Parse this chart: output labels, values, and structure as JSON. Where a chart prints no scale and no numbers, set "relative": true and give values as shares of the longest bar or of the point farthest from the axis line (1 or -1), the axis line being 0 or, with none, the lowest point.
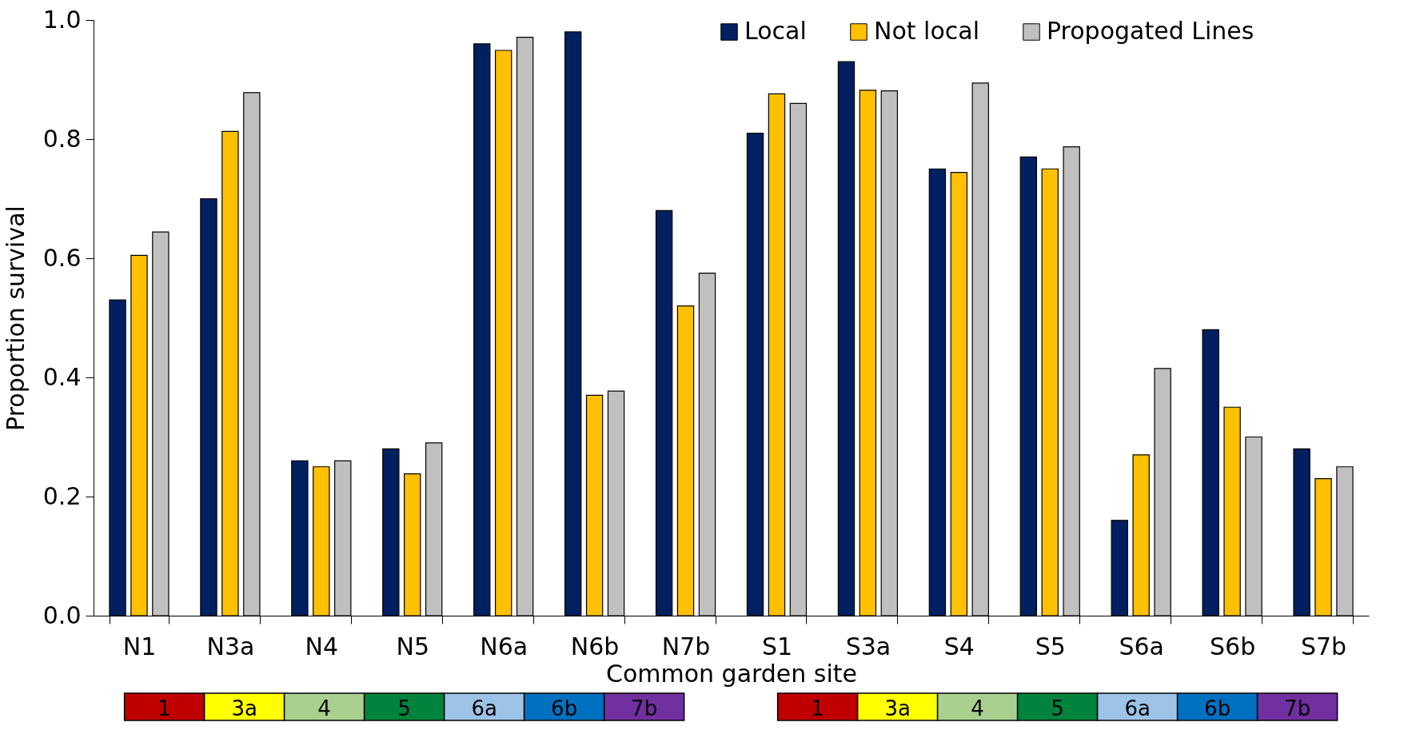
{
  "chart_data": [
    {
      "type": "bar",
      "xlabel": "Common garden site",
      "ylabel": "Proportion survival",
      "categories": [
        "N1",
        "N3a",
        "N4",
        "N5",
        "N6a",
        "N6b",
        "N7b",
        "S1",
        "S3a",
        "S4",
        "S5",
        "S6a",
        "S6b",
        "S7b"
      ],
      "series": [
        {
          "name": "Local",
          "color": "#002060",
          "values": [
            0.53,
            0.7,
            0.26,
            0.28,
            0.96,
            0.98,
            0.68,
            0.81,
            0.93,
            0.75,
            0.77,
            0.16,
            0.48,
            0.28
          ]
        },
        {
          "name": "Not local",
          "color": "#ffc000",
          "values": [
            0.605,
            0.813,
            0.25,
            0.238,
            0.949,
            0.37,
            0.52,
            0.876,
            0.882,
            0.744,
            0.75,
            0.27,
            0.35,
            0.23
          ]
        },
        {
          "name": "Propogated Lines",
          "color": "#c0c0c0",
          "values": [
            0.644,
            0.878,
            0.26,
            0.29,
            0.971,
            0.377,
            0.575,
            0.86,
            0.881,
            0.894,
            0.787,
            0.415,
            0.3,
            0.25
          ]
        }
      ],
      "ylim": [
        0,
        1
      ],
      "yticks": [
        {
          "value": 0,
          "label": "0.0"
        },
        0.2,
        0.4,
        0.6,
        0.8,
        {
          "value": 1,
          "label": "1.0"
        }
      ],
      "grid": false,
      "legend": "top right"
    },
    {
      "type": "bar",
      "relative": true,
      "categories": [
        "1",
        "3a",
        "4",
        "5",
        "6a",
        "6b",
        "7b"
      ],
      "values": [
        1,
        1,
        1,
        1,
        1,
        1,
        1
      ],
      "colors": [
        "#c00000",
        "#ffff00",
        "#a9d08e",
        "#00843d",
        "#9dc3e6",
        "#0070c0",
        "#7030a0"
      ]
    },
    {
      "type": "bar",
      "relative": true,
      "categories": [
        "1",
        "3a",
        "4",
        "5",
        "6a",
        "6b",
        "7b"
      ],
      "values": [
        1,
        1,
        1,
        1,
        1,
        1,
        1
      ],
      "colors": [
        "#c00000",
        "#ffff00",
        "#a9d08e",
        "#00843d",
        "#9dc3e6",
        "#0070c0",
        "#7030a0"
      ]
    }
  ]
}
